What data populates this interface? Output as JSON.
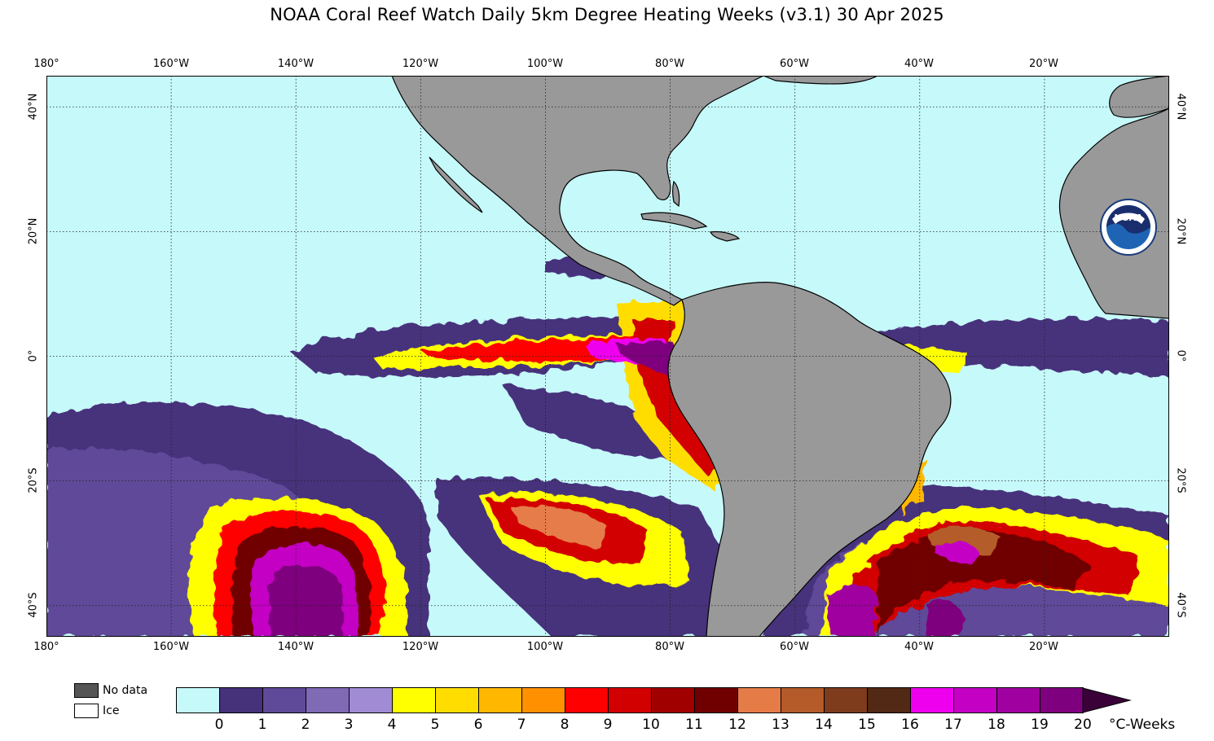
{
  "title": "NOAA Coral Reef Watch Daily 5km Degree Heating Weeks  (v3.1)   30 Apr 2025",
  "map": {
    "projection": "equirectangular",
    "lon_range": [
      -180,
      0
    ],
    "lat_range": [
      -45,
      45
    ],
    "ocean_color": "#c6f9f9",
    "land_color": "#999999",
    "grid_lines": "dotted",
    "lon_labels_top": [
      "180°",
      "160°W",
      "140°W",
      "120°W",
      "100°W",
      "80°W",
      "60°W",
      "40°W",
      "20°W"
    ],
    "lon_labels_bottom": [
      "180°",
      "160°W",
      "140°W",
      "120°W",
      "100°W",
      "80°W",
      "60°W",
      "40°W",
      "20°W"
    ],
    "lat_labels_left": [
      "40°N",
      "20°N",
      "0°",
      "20°S",
      "40°S"
    ],
    "lat_labels_right": [
      "40°N",
      "20°N",
      "0°",
      "20°S",
      "40°S"
    ],
    "logo": "NOAA",
    "logo_icon": "noaa-seal-icon"
  },
  "legend": {
    "no_data_label": "No data",
    "no_data_color": "#555555",
    "ice_label": "Ice",
    "ice_color": "#ffffff"
  },
  "colorbar": {
    "units": "°C-Weeks",
    "ticks": [
      "0",
      "1",
      "2",
      "3",
      "4",
      "5",
      "6",
      "7",
      "8",
      "9",
      "10",
      "11",
      "12",
      "13",
      "14",
      "15",
      "16",
      "17",
      "18",
      "19",
      "20"
    ],
    "colors": [
      "#c6f9f9",
      "#46317b",
      "#5e4a98",
      "#8069b5",
      "#a08bd4",
      "#ffff00",
      "#ffdd00",
      "#ffb700",
      "#ff9100",
      "#ff0000",
      "#d20000",
      "#a00000",
      "#700000",
      "#e57c48",
      "#b45b29",
      "#7f3c1d",
      "#512914",
      "#ee00ee",
      "#c400c4",
      "#a000a0",
      "#7e007e"
    ],
    "extend_color": "#3a0038"
  }
}
